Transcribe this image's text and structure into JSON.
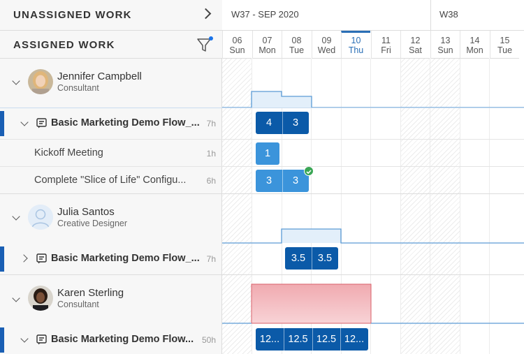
{
  "header": {
    "unassigned_label": "UNASSIGNED WORK",
    "assigned_label": "ASSIGNED WORK"
  },
  "timeline": {
    "weeks": [
      {
        "label": "W37 - SEP 2020"
      },
      {
        "label": "W38"
      }
    ],
    "days": [
      {
        "num": "06",
        "dow": "Sun",
        "weekend": true
      },
      {
        "num": "07",
        "dow": "Mon",
        "weekend": false
      },
      {
        "num": "08",
        "dow": "Tue",
        "weekend": false
      },
      {
        "num": "09",
        "dow": "Wed",
        "weekend": false
      },
      {
        "num": "10",
        "dow": "Thu",
        "weekend": false,
        "today": true
      },
      {
        "num": "11",
        "dow": "Fri",
        "weekend": false
      },
      {
        "num": "12",
        "dow": "Sat",
        "weekend": true
      },
      {
        "num": "13",
        "dow": "Sun",
        "weekend": true
      },
      {
        "num": "14",
        "dow": "Mon",
        "weekend": false
      },
      {
        "num": "15",
        "dow": "Tue",
        "weekend": false
      }
    ]
  },
  "people": [
    {
      "name": "Jennifer  Campbell",
      "role": "Consultant",
      "project": {
        "title": "Basic Marketing Demo Flow_...",
        "hours": "7h",
        "chips": [
          "4",
          "3"
        ]
      },
      "tasks": [
        {
          "title": "Kickoff Meeting",
          "hours": "1h",
          "chips": [
            "1"
          ]
        },
        {
          "title": "Complete \"Slice of Life\" Configu...",
          "hours": "6h",
          "chips": [
            "3",
            "3"
          ]
        }
      ]
    },
    {
      "name": "Julia Santos",
      "role": "Creative Designer",
      "project": {
        "title": "Basic Marketing Demo Flow_...",
        "hours": "7h",
        "chips": [
          "3.5",
          "3.5"
        ]
      }
    },
    {
      "name": "Karen  Sterling",
      "role": "Consultant",
      "project": {
        "title": "Basic Marketing Demo Flow...",
        "hours": "50h",
        "chips": [
          "12...",
          "12.5",
          "12.5",
          "12..."
        ]
      }
    }
  ],
  "colors": {
    "accent": "#1a5fb4",
    "chip_dark": "#0b5aa8",
    "chip_light": "#3b94db",
    "overload": "#f2b8bc",
    "success": "#3aa655"
  },
  "icons": [
    "chevron-right-icon",
    "filter-icon",
    "chevron-down-icon",
    "chevron-right-icon",
    "project-icon",
    "check-circle-icon"
  ]
}
